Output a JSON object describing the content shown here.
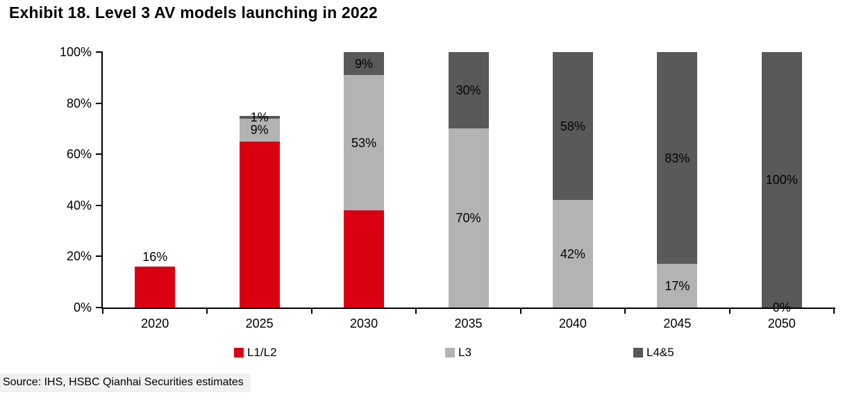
{
  "source_note": "Source: IHS, HSBC Qianhai Securities estimates",
  "chart_data": {
    "type": "bar",
    "stacked": true,
    "title": "Exhibit 18. Level 3 AV models launching in 2022",
    "categories": [
      "2020",
      "2025",
      "2030",
      "2035",
      "2040",
      "2045",
      "2050"
    ],
    "series": [
      {
        "name": "L1/L2",
        "color": "#DB0011",
        "values": [
          16,
          65,
          38,
          0,
          0,
          0,
          0
        ],
        "labels": [
          "16%",
          "",
          "",
          "",
          "",
          "",
          ""
        ],
        "label_position": "above"
      },
      {
        "name": "L3",
        "color": "#B3B3B3",
        "values": [
          0,
          9,
          53,
          70,
          42,
          17,
          0
        ],
        "labels": [
          "",
          "9%",
          "53%",
          "70%",
          "42%",
          "17%",
          "0%"
        ],
        "label_position": "center"
      },
      {
        "name": "L4&5",
        "color": "#595959",
        "values": [
          0,
          1,
          9,
          30,
          58,
          83,
          100
        ],
        "labels": [
          "",
          "1%",
          "9%",
          "30%",
          "58%",
          "83%",
          "100%"
        ],
        "label_position": "center"
      }
    ],
    "ylim": [
      0,
      100
    ],
    "yticks": [
      "0%",
      "20%",
      "40%",
      "60%",
      "80%",
      "100%"
    ],
    "xlabel": "",
    "ylabel": "",
    "grid": false,
    "legend_position": "bottom"
  }
}
